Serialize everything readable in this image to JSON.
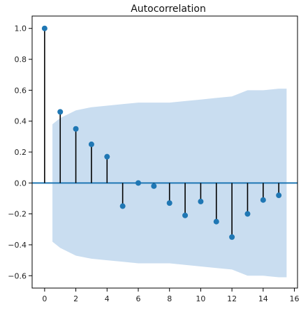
{
  "chart_data": {
    "type": "stem",
    "title": "Autocorrelation",
    "xlabel": "",
    "ylabel": "",
    "xlim": [
      -0.8,
      16.2
    ],
    "ylim": [
      -0.68,
      1.08
    ],
    "xticks": [
      0,
      2,
      4,
      6,
      8,
      10,
      12,
      14,
      16
    ],
    "xtick_labels": [
      "0",
      "2",
      "4",
      "6",
      "8",
      "10",
      "12",
      "14",
      "16"
    ],
    "yticks": [
      1.0,
      0.8,
      0.6,
      0.4,
      0.2,
      0.0,
      -0.2,
      -0.4,
      -0.6
    ],
    "ytick_labels": [
      "1.0",
      "0.8",
      "0.6",
      "0.4",
      "0.2",
      "0.0",
      "−0.2",
      "−0.4",
      "−0.6"
    ],
    "grid": false,
    "legend": "none",
    "series": [
      {
        "lags": [
          0,
          1,
          2,
          3,
          4,
          5,
          6,
          7,
          8,
          9,
          10,
          11,
          12,
          13,
          14,
          15
        ],
        "values": [
          1.0,
          0.46,
          0.35,
          0.25,
          0.17,
          -0.15,
          0.0,
          -0.02,
          -0.13,
          -0.21,
          -0.12,
          -0.25,
          -0.35,
          -0.2,
          -0.11,
          -0.08
        ]
      }
    ],
    "confidence_band": {
      "x": [
        0.5,
        1,
        2,
        3,
        4,
        5,
        6,
        7,
        8,
        9,
        10,
        11,
        12,
        13,
        14,
        15,
        15.5
      ],
      "upper": [
        0.38,
        0.42,
        0.47,
        0.49,
        0.5,
        0.51,
        0.52,
        0.52,
        0.52,
        0.53,
        0.54,
        0.55,
        0.56,
        0.6,
        0.6,
        0.61,
        0.61
      ],
      "lower": [
        -0.38,
        -0.42,
        -0.47,
        -0.49,
        -0.5,
        -0.51,
        -0.52,
        -0.52,
        -0.52,
        -0.53,
        -0.54,
        -0.55,
        -0.56,
        -0.6,
        -0.6,
        -0.61,
        -0.61
      ]
    },
    "colors": {
      "marker": "#1f77b4",
      "band": "#c6dbef",
      "stem": "#000000",
      "zero_line": "#1f77b4"
    }
  }
}
